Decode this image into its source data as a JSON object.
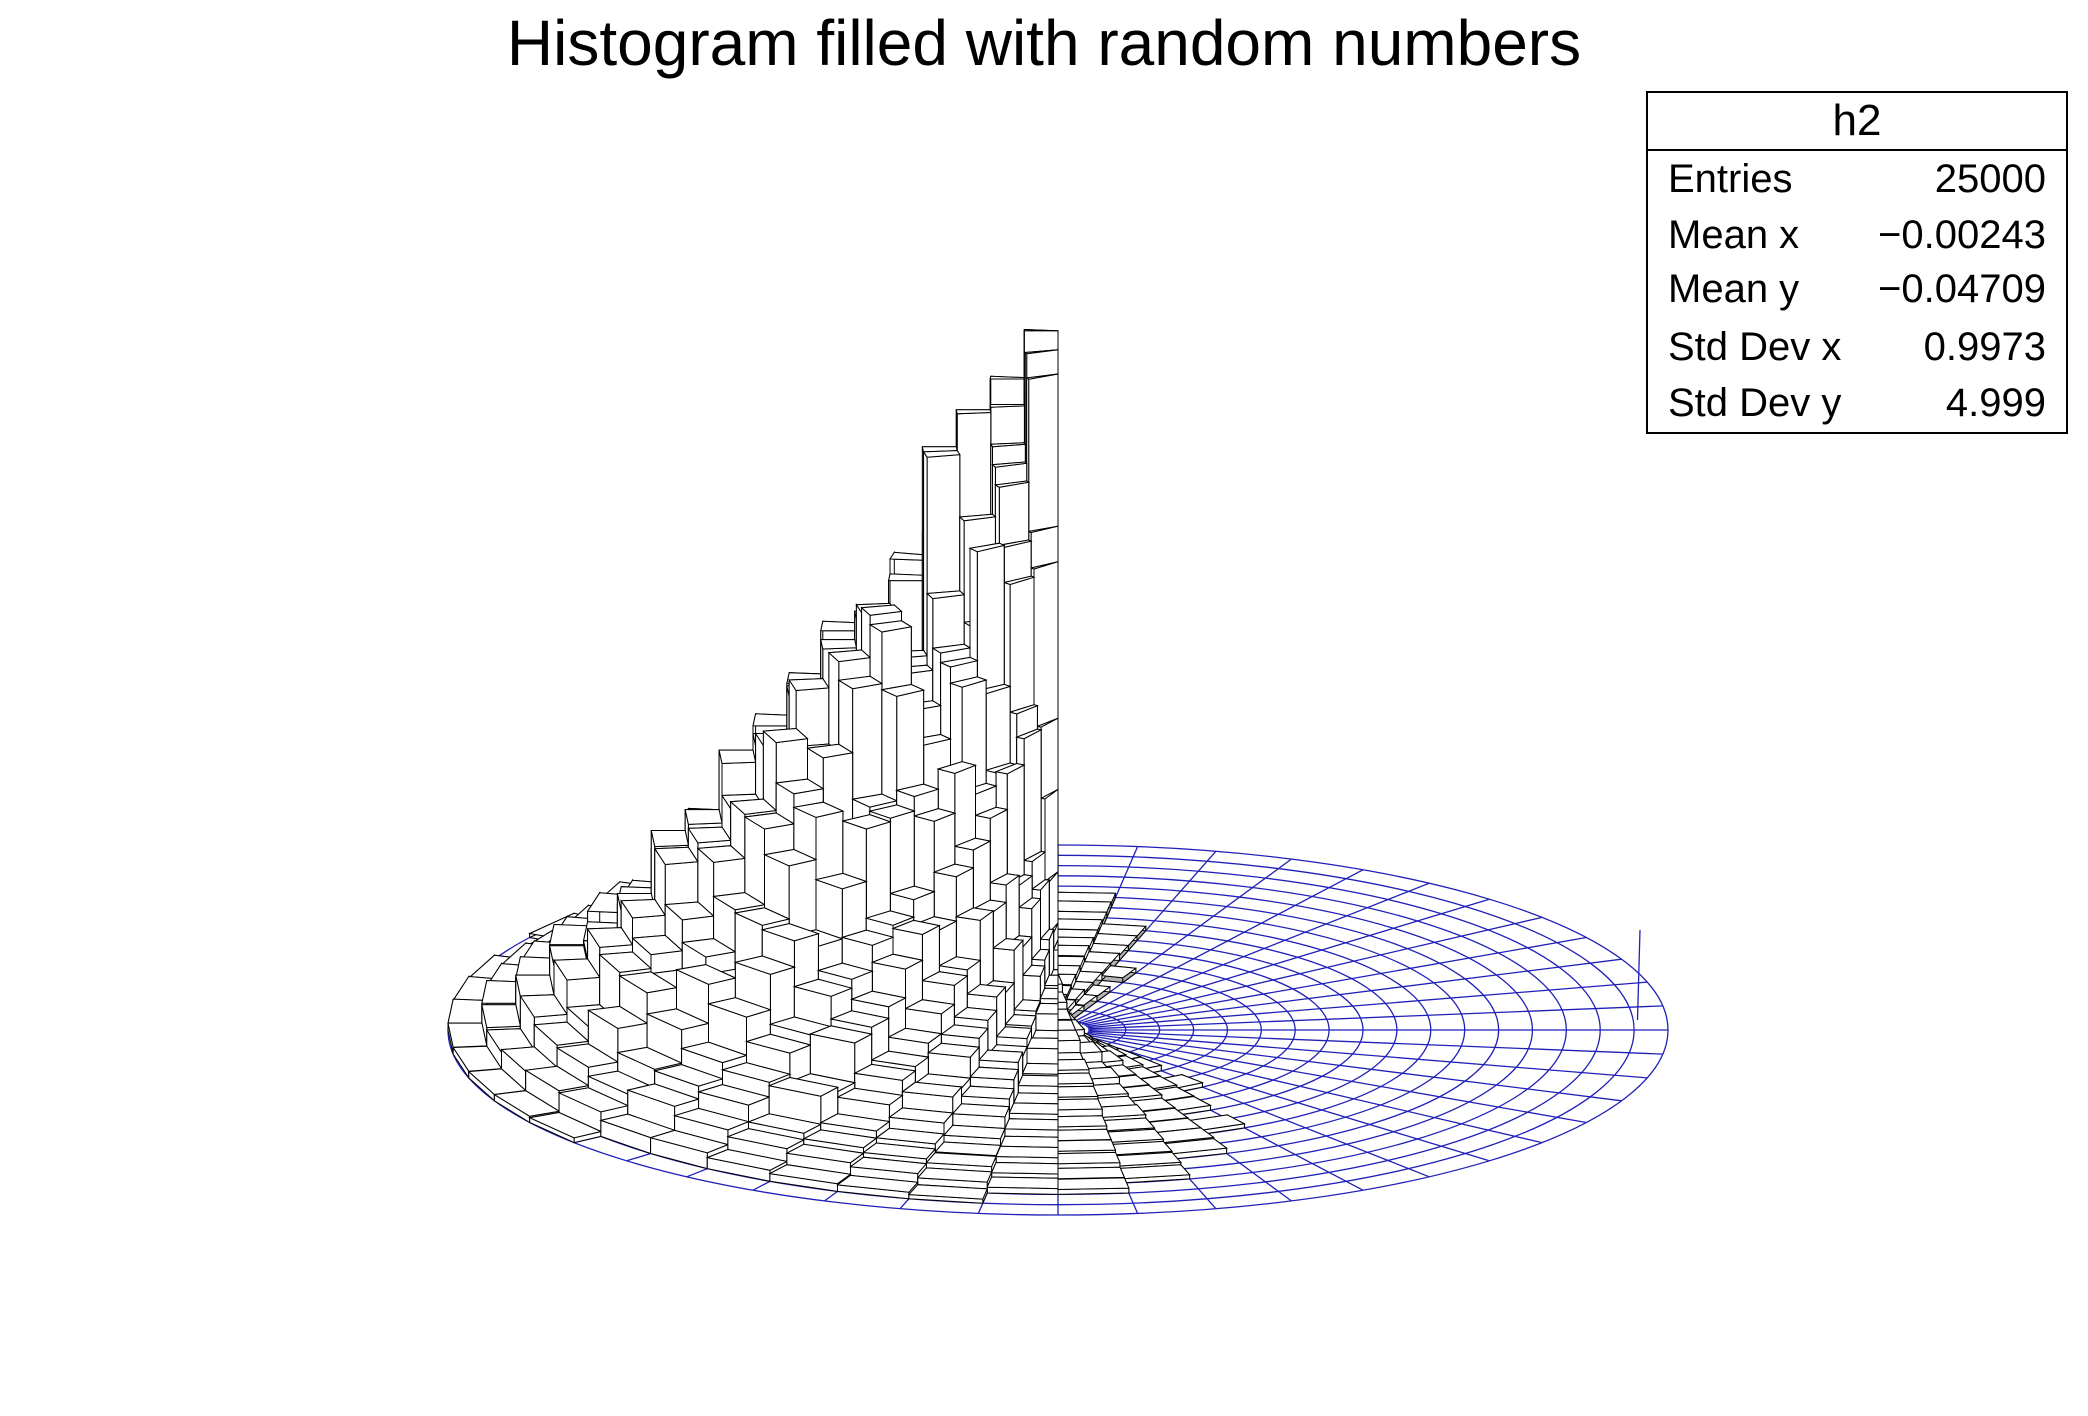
{
  "title": "Histogram filled with random numbers",
  "stats": {
    "name": "h2",
    "rows": [
      {
        "label": "Entries",
        "value": "25000"
      },
      {
        "label": "Mean x",
        "value": "−0.00243"
      },
      {
        "label": "Mean y",
        "value": "−0.04709"
      },
      {
        "label": "Std Dev x",
        "value": "0.9973"
      },
      {
        "label": "Std Dev y",
        "value": "4.999"
      }
    ]
  },
  "colors": {
    "mesh": "#2020b8",
    "box_face": "#ffffff",
    "box_shadow": "#b4b4b4",
    "box_edge": "#000000"
  },
  "chart_data": {
    "type": "lego",
    "coordinate_system": "polar",
    "histogram": "h2",
    "entries": 25000,
    "mean_x": -0.00243,
    "mean_y": -0.04709,
    "std_dev_x": 0.9973,
    "std_dev_y": 4.999,
    "title": "Histogram filled with random numbers",
    "axes_shown": false,
    "grid": false
  }
}
